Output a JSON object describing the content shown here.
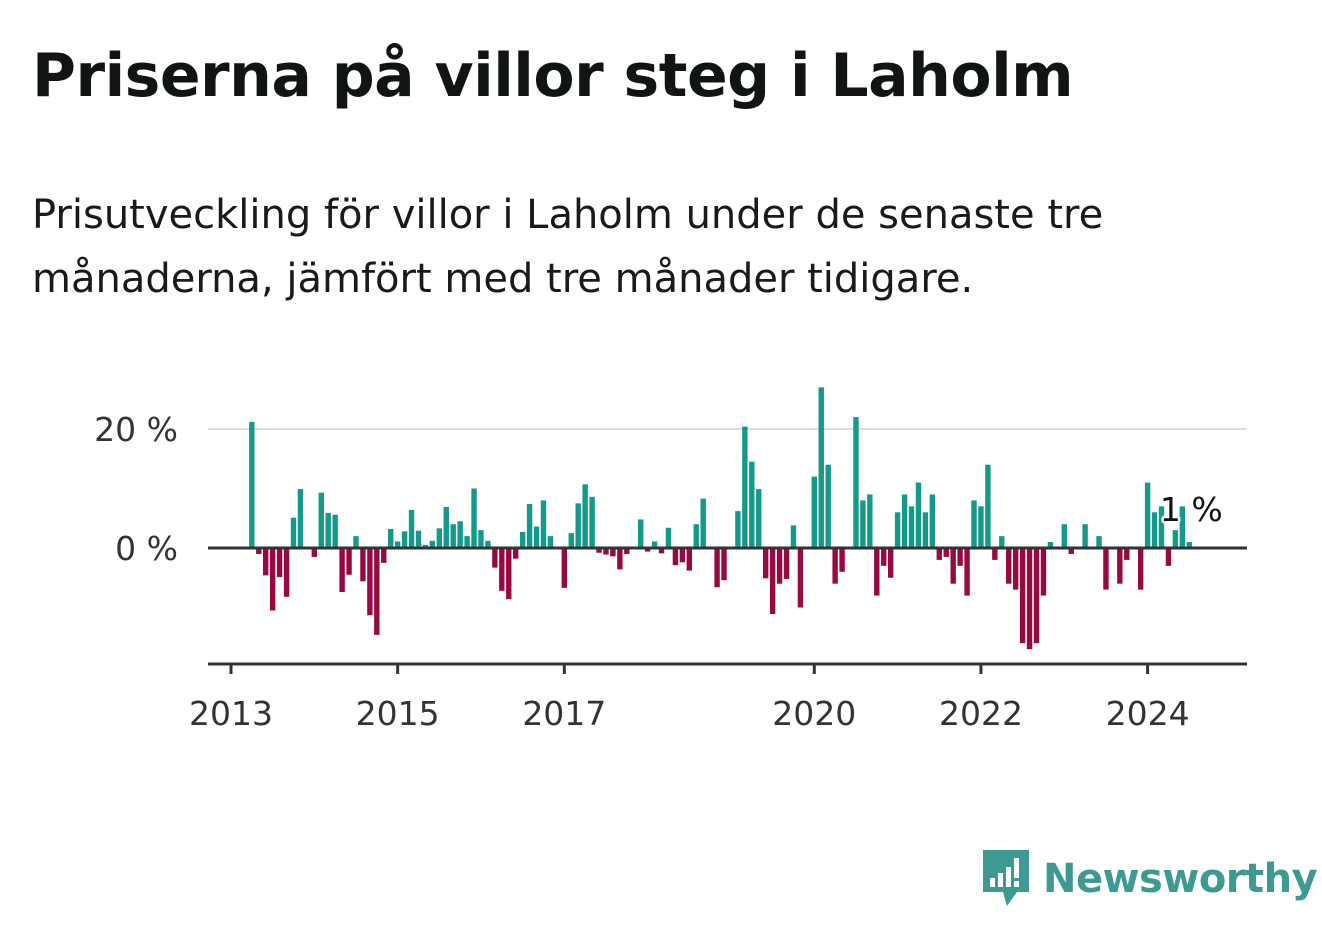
{
  "title": "Priserna på villor steg i Laholm",
  "subtitle": "Prisutveckling för villor i Laholm under de senaste tre månaderna, jämfört med tre månader tidigare.",
  "logo_text": "Newsworthy",
  "colors": {
    "positive": "#14998b",
    "negative": "#960a42",
    "grid": "#dddddd",
    "axis": "#333333",
    "brand": "#3d9a93"
  },
  "chart_data": {
    "type": "bar",
    "x_start": "2013-01",
    "x_end": "2024-12",
    "ylim": [
      -20,
      30
    ],
    "yticks": [
      {
        "value": 0,
        "label": "0 %"
      },
      {
        "value": 20,
        "label": "20 %"
      }
    ],
    "xticks": [
      {
        "date": "2013-01",
        "label": "2013"
      },
      {
        "date": "2015-01",
        "label": "2015"
      },
      {
        "date": "2017-01",
        "label": "2017"
      },
      {
        "date": "2020-01",
        "label": "2020"
      },
      {
        "date": "2022-01",
        "label": "2022"
      },
      {
        "date": "2024-01",
        "label": "2024"
      }
    ],
    "grid": true,
    "series": [
      {
        "values": [
          {
            "date": "2013-04",
            "value": 21.2
          },
          {
            "date": "2013-05",
            "value": -1.0
          },
          {
            "date": "2013-06",
            "value": -4.6
          },
          {
            "date": "2013-07",
            "value": -10.5
          },
          {
            "date": "2013-08",
            "value": -4.9
          },
          {
            "date": "2013-09",
            "value": -8.2
          },
          {
            "date": "2013-10",
            "value": 5.1
          },
          {
            "date": "2013-11",
            "value": 9.9
          },
          {
            "date": "2014-01",
            "value": -1.5
          },
          {
            "date": "2014-02",
            "value": 9.3
          },
          {
            "date": "2014-03",
            "value": 5.9
          },
          {
            "date": "2014-04",
            "value": 5.6
          },
          {
            "date": "2014-05",
            "value": -7.4
          },
          {
            "date": "2014-06",
            "value": -4.5
          },
          {
            "date": "2014-07",
            "value": 2.0
          },
          {
            "date": "2014-08",
            "value": -5.6
          },
          {
            "date": "2014-09",
            "value": -11.3
          },
          {
            "date": "2014-10",
            "value": -14.6
          },
          {
            "date": "2014-11",
            "value": -2.5
          },
          {
            "date": "2014-12",
            "value": 3.2
          },
          {
            "date": "2015-01",
            "value": 1.1
          },
          {
            "date": "2015-02",
            "value": 2.8
          },
          {
            "date": "2015-03",
            "value": 6.4
          },
          {
            "date": "2015-04",
            "value": 2.9
          },
          {
            "date": "2015-05",
            "value": 0.5
          },
          {
            "date": "2015-06",
            "value": 1.2
          },
          {
            "date": "2015-07",
            "value": 3.3
          },
          {
            "date": "2015-08",
            "value": 6.9
          },
          {
            "date": "2015-09",
            "value": 4.0
          },
          {
            "date": "2015-10",
            "value": 4.5
          },
          {
            "date": "2015-11",
            "value": 2.0
          },
          {
            "date": "2015-12",
            "value": 10.0
          },
          {
            "date": "2016-01",
            "value": 3.0
          },
          {
            "date": "2016-02",
            "value": 1.2
          },
          {
            "date": "2016-03",
            "value": -3.3
          },
          {
            "date": "2016-04",
            "value": -7.2
          },
          {
            "date": "2016-05",
            "value": -8.6
          },
          {
            "date": "2016-06",
            "value": -1.8
          },
          {
            "date": "2016-07",
            "value": 2.7
          },
          {
            "date": "2016-08",
            "value": 7.4
          },
          {
            "date": "2016-09",
            "value": 3.6
          },
          {
            "date": "2016-10",
            "value": 8.0
          },
          {
            "date": "2016-11",
            "value": 2.0
          },
          {
            "date": "2017-01",
            "value": -6.7
          },
          {
            "date": "2017-02",
            "value": 2.5
          },
          {
            "date": "2017-03",
            "value": 7.5
          },
          {
            "date": "2017-04",
            "value": 10.7
          },
          {
            "date": "2017-05",
            "value": 8.6
          },
          {
            "date": "2017-06",
            "value": -0.8
          },
          {
            "date": "2017-07",
            "value": -1.1
          },
          {
            "date": "2017-08",
            "value": -1.4
          },
          {
            "date": "2017-09",
            "value": -3.6
          },
          {
            "date": "2017-10",
            "value": -1.0
          },
          {
            "date": "2017-12",
            "value": 4.8
          },
          {
            "date": "2018-01",
            "value": -0.6
          },
          {
            "date": "2018-02",
            "value": 1.1
          },
          {
            "date": "2018-03",
            "value": -0.9
          },
          {
            "date": "2018-04",
            "value": 3.4
          },
          {
            "date": "2018-05",
            "value": -2.9
          },
          {
            "date": "2018-06",
            "value": -2.4
          },
          {
            "date": "2018-07",
            "value": -3.8
          },
          {
            "date": "2018-08",
            "value": 4.0
          },
          {
            "date": "2018-09",
            "value": 8.3
          },
          {
            "date": "2018-11",
            "value": -6.6
          },
          {
            "date": "2018-12",
            "value": -5.4
          },
          {
            "date": "2019-02",
            "value": 6.2
          },
          {
            "date": "2019-03",
            "value": 20.4
          },
          {
            "date": "2019-04",
            "value": 14.5
          },
          {
            "date": "2019-05",
            "value": 9.9
          },
          {
            "date": "2019-06",
            "value": -5.1
          },
          {
            "date": "2019-07",
            "value": -11.1
          },
          {
            "date": "2019-08",
            "value": -6.0
          },
          {
            "date": "2019-09",
            "value": -5.2
          },
          {
            "date": "2019-10",
            "value": 3.8
          },
          {
            "date": "2019-11",
            "value": -10.0
          },
          {
            "date": "2020-01",
            "value": 12.0
          },
          {
            "date": "2020-02",
            "value": 27.0
          },
          {
            "date": "2020-03",
            "value": 14.0
          },
          {
            "date": "2020-04",
            "value": -6.0
          },
          {
            "date": "2020-05",
            "value": -4.0
          },
          {
            "date": "2020-07",
            "value": 22.0
          },
          {
            "date": "2020-08",
            "value": 8.0
          },
          {
            "date": "2020-09",
            "value": 9.0
          },
          {
            "date": "2020-10",
            "value": -8.0
          },
          {
            "date": "2020-11",
            "value": -3.0
          },
          {
            "date": "2020-12",
            "value": -5.0
          },
          {
            "date": "2021-01",
            "value": 6.0
          },
          {
            "date": "2021-02",
            "value": 9.0
          },
          {
            "date": "2021-03",
            "value": 7.0
          },
          {
            "date": "2021-04",
            "value": 11.0
          },
          {
            "date": "2021-05",
            "value": 6.0
          },
          {
            "date": "2021-06",
            "value": 9.0
          },
          {
            "date": "2021-07",
            "value": -2.0
          },
          {
            "date": "2021-08",
            "value": -1.5
          },
          {
            "date": "2021-09",
            "value": -6.0
          },
          {
            "date": "2021-10",
            "value": -3.0
          },
          {
            "date": "2021-11",
            "value": -8.0
          },
          {
            "date": "2021-12",
            "value": 8.0
          },
          {
            "date": "2022-01",
            "value": 7.0
          },
          {
            "date": "2022-02",
            "value": 14.0
          },
          {
            "date": "2022-03",
            "value": -2.0
          },
          {
            "date": "2022-04",
            "value": 2.0
          },
          {
            "date": "2022-05",
            "value": -6.0
          },
          {
            "date": "2022-06",
            "value": -7.0
          },
          {
            "date": "2022-07",
            "value": -16.0
          },
          {
            "date": "2022-08",
            "value": -17.0
          },
          {
            "date": "2022-09",
            "value": -16.0
          },
          {
            "date": "2022-10",
            "value": -8.0
          },
          {
            "date": "2022-11",
            "value": 1.0
          },
          {
            "date": "2023-01",
            "value": 4.0
          },
          {
            "date": "2023-02",
            "value": -1.0
          },
          {
            "date": "2023-04",
            "value": 4.0
          },
          {
            "date": "2023-06",
            "value": 2.0
          },
          {
            "date": "2023-07",
            "value": -7.0
          },
          {
            "date": "2023-09",
            "value": -6.0
          },
          {
            "date": "2023-10",
            "value": -2.0
          },
          {
            "date": "2023-12",
            "value": -7.0
          },
          {
            "date": "2024-01",
            "value": 11.0
          },
          {
            "date": "2024-02",
            "value": 6.0
          },
          {
            "date": "2024-03",
            "value": 7.0
          },
          {
            "date": "2024-04",
            "value": -3.0
          },
          {
            "date": "2024-05",
            "value": 3.0
          },
          {
            "date": "2024-06",
            "value": 7.0
          },
          {
            "date": "2024-07",
            "value": 1.0
          }
        ]
      }
    ],
    "annotations": [
      {
        "date": "2024-07",
        "text": "1 %"
      }
    ]
  }
}
